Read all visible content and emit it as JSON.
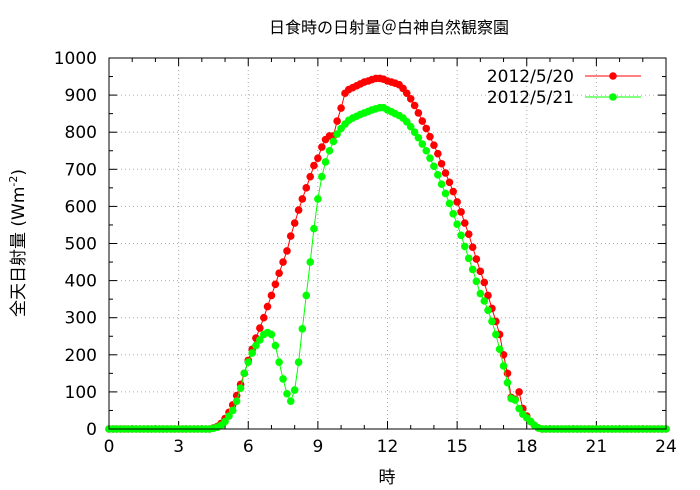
{
  "chart_data": {
    "type": "line",
    "title": "日食時の日射量＠白神自然観察園",
    "xlabel": "時",
    "ylabel_main": "全天日射量 (Wm",
    "ylabel_sup": "-2",
    "ylabel_close": ")",
    "xlim": [
      0,
      24
    ],
    "ylim": [
      0,
      1000
    ],
    "xticks": [
      0,
      3,
      6,
      9,
      12,
      15,
      18,
      21,
      24
    ],
    "yticks": [
      0,
      100,
      200,
      300,
      400,
      500,
      600,
      700,
      800,
      900,
      1000
    ],
    "grid": true,
    "legend_position": "top-right",
    "series": [
      {
        "name": "2012/5/20",
        "color": "#ff0000",
        "points": [
          [
            0,
            0
          ],
          [
            0.17,
            0
          ],
          [
            0.33,
            0
          ],
          [
            0.5,
            0
          ],
          [
            0.67,
            0
          ],
          [
            0.83,
            0
          ],
          [
            1,
            0
          ],
          [
            1.17,
            0
          ],
          [
            1.33,
            0
          ],
          [
            1.5,
            0
          ],
          [
            1.67,
            0
          ],
          [
            1.83,
            0
          ],
          [
            2,
            0
          ],
          [
            2.17,
            0
          ],
          [
            2.33,
            0
          ],
          [
            2.5,
            0
          ],
          [
            2.67,
            0
          ],
          [
            2.83,
            0
          ],
          [
            3,
            0
          ],
          [
            3.17,
            0
          ],
          [
            3.33,
            0
          ],
          [
            3.5,
            0
          ],
          [
            3.67,
            0
          ],
          [
            3.83,
            0
          ],
          [
            4,
            0
          ],
          [
            4.17,
            0
          ],
          [
            4.33,
            0
          ],
          [
            4.5,
            3
          ],
          [
            4.67,
            7
          ],
          [
            4.83,
            15
          ],
          [
            5,
            28
          ],
          [
            5.17,
            45
          ],
          [
            5.33,
            65
          ],
          [
            5.5,
            90
          ],
          [
            5.67,
            120
          ],
          [
            5.83,
            150
          ],
          [
            6,
            185
          ],
          [
            6.17,
            215
          ],
          [
            6.33,
            245
          ],
          [
            6.5,
            272
          ],
          [
            6.67,
            300
          ],
          [
            6.83,
            330
          ],
          [
            7,
            360
          ],
          [
            7.17,
            390
          ],
          [
            7.33,
            420
          ],
          [
            7.5,
            450
          ],
          [
            7.67,
            480
          ],
          [
            7.83,
            520
          ],
          [
            8,
            555
          ],
          [
            8.17,
            590
          ],
          [
            8.33,
            620
          ],
          [
            8.5,
            650
          ],
          [
            8.67,
            680
          ],
          [
            8.83,
            710
          ],
          [
            9,
            730
          ],
          [
            9.17,
            760
          ],
          [
            9.33,
            780
          ],
          [
            9.5,
            790
          ],
          [
            9.67,
            790
          ],
          [
            9.83,
            830
          ],
          [
            10,
            865
          ],
          [
            10.17,
            905
          ],
          [
            10.33,
            915
          ],
          [
            10.5,
            920
          ],
          [
            10.67,
            925
          ],
          [
            10.83,
            930
          ],
          [
            11,
            935
          ],
          [
            11.17,
            938
          ],
          [
            11.33,
            942
          ],
          [
            11.5,
            945
          ],
          [
            11.67,
            945
          ],
          [
            11.83,
            943
          ],
          [
            12,
            938
          ],
          [
            12.17,
            935
          ],
          [
            12.33,
            932
          ],
          [
            12.5,
            928
          ],
          [
            12.67,
            918
          ],
          [
            12.83,
            905
          ],
          [
            13,
            890
          ],
          [
            13.17,
            872
          ],
          [
            13.33,
            852
          ],
          [
            13.5,
            830
          ],
          [
            13.67,
            810
          ],
          [
            13.83,
            788
          ],
          [
            14,
            765
          ],
          [
            14.17,
            742
          ],
          [
            14.33,
            715
          ],
          [
            14.5,
            690
          ],
          [
            14.67,
            665
          ],
          [
            14.83,
            640
          ],
          [
            15,
            612
          ],
          [
            15.17,
            585
          ],
          [
            15.33,
            555
          ],
          [
            15.5,
            525
          ],
          [
            15.67,
            490
          ],
          [
            15.83,
            458
          ],
          [
            16,
            425
          ],
          [
            16.17,
            395
          ],
          [
            16.33,
            360
          ],
          [
            16.5,
            325
          ],
          [
            16.67,
            290
          ],
          [
            16.83,
            255
          ],
          [
            17,
            200
          ],
          [
            17.17,
            150
          ],
          [
            17.33,
            85
          ],
          [
            17.5,
            80
          ],
          [
            17.67,
            100
          ],
          [
            17.83,
            55
          ],
          [
            18,
            35
          ],
          [
            18.17,
            20
          ],
          [
            18.33,
            10
          ],
          [
            18.5,
            3
          ],
          [
            18.67,
            0
          ],
          [
            18.83,
            0
          ],
          [
            19,
            0
          ],
          [
            19.17,
            0
          ],
          [
            19.33,
            0
          ],
          [
            19.5,
            0
          ],
          [
            19.67,
            0
          ],
          [
            19.83,
            0
          ],
          [
            20,
            0
          ],
          [
            20.17,
            0
          ],
          [
            20.33,
            0
          ],
          [
            20.5,
            0
          ],
          [
            20.67,
            0
          ],
          [
            20.83,
            0
          ],
          [
            21,
            0
          ],
          [
            21.17,
            0
          ],
          [
            21.33,
            0
          ],
          [
            21.5,
            0
          ],
          [
            21.67,
            0
          ],
          [
            21.83,
            0
          ],
          [
            22,
            0
          ],
          [
            22.17,
            0
          ],
          [
            22.33,
            0
          ],
          [
            22.5,
            0
          ],
          [
            22.67,
            0
          ],
          [
            22.83,
            0
          ],
          [
            23,
            0
          ],
          [
            23.17,
            0
          ],
          [
            23.33,
            0
          ],
          [
            23.5,
            0
          ],
          [
            23.67,
            0
          ],
          [
            23.83,
            0
          ],
          [
            24,
            0
          ]
        ]
      },
      {
        "name": "2012/5/21",
        "color": "#00ff00",
        "points": [
          [
            0,
            0
          ],
          [
            0.17,
            0
          ],
          [
            0.33,
            0
          ],
          [
            0.5,
            0
          ],
          [
            0.67,
            0
          ],
          [
            0.83,
            0
          ],
          [
            1,
            0
          ],
          [
            1.17,
            0
          ],
          [
            1.33,
            0
          ],
          [
            1.5,
            0
          ],
          [
            1.67,
            0
          ],
          [
            1.83,
            0
          ],
          [
            2,
            0
          ],
          [
            2.17,
            0
          ],
          [
            2.33,
            0
          ],
          [
            2.5,
            0
          ],
          [
            2.67,
            0
          ],
          [
            2.83,
            0
          ],
          [
            3,
            0
          ],
          [
            3.17,
            0
          ],
          [
            3.33,
            0
          ],
          [
            3.5,
            0
          ],
          [
            3.67,
            0
          ],
          [
            3.83,
            0
          ],
          [
            4,
            0
          ],
          [
            4.17,
            0
          ],
          [
            4.33,
            0
          ],
          [
            4.5,
            2
          ],
          [
            4.67,
            5
          ],
          [
            4.83,
            10
          ],
          [
            5,
            20
          ],
          [
            5.17,
            35
          ],
          [
            5.33,
            50
          ],
          [
            5.5,
            75
          ],
          [
            5.67,
            110
          ],
          [
            5.83,
            150
          ],
          [
            6,
            180
          ],
          [
            6.17,
            205
          ],
          [
            6.33,
            225
          ],
          [
            6.5,
            240
          ],
          [
            6.67,
            255
          ],
          [
            6.83,
            260
          ],
          [
            7,
            255
          ],
          [
            7.17,
            225
          ],
          [
            7.33,
            180
          ],
          [
            7.5,
            135
          ],
          [
            7.67,
            95
          ],
          [
            7.83,
            75
          ],
          [
            8,
            105
          ],
          [
            8.17,
            180
          ],
          [
            8.33,
            270
          ],
          [
            8.5,
            360
          ],
          [
            8.67,
            450
          ],
          [
            8.83,
            540
          ],
          [
            9,
            620
          ],
          [
            9.17,
            680
          ],
          [
            9.33,
            720
          ],
          [
            9.5,
            750
          ],
          [
            9.67,
            775
          ],
          [
            9.83,
            795
          ],
          [
            10,
            810
          ],
          [
            10.17,
            822
          ],
          [
            10.33,
            832
          ],
          [
            10.5,
            838
          ],
          [
            10.67,
            843
          ],
          [
            10.83,
            848
          ],
          [
            11,
            852
          ],
          [
            11.17,
            856
          ],
          [
            11.33,
            860
          ],
          [
            11.5,
            863
          ],
          [
            11.67,
            866
          ],
          [
            11.83,
            866
          ],
          [
            12,
            860
          ],
          [
            12.17,
            855
          ],
          [
            12.33,
            850
          ],
          [
            12.5,
            845
          ],
          [
            12.67,
            838
          ],
          [
            12.83,
            828
          ],
          [
            13,
            815
          ],
          [
            13.17,
            800
          ],
          [
            13.33,
            785
          ],
          [
            13.5,
            768
          ],
          [
            13.67,
            750
          ],
          [
            13.83,
            730
          ],
          [
            14,
            708
          ],
          [
            14.17,
            685
          ],
          [
            14.33,
            660
          ],
          [
            14.5,
            635
          ],
          [
            14.67,
            608
          ],
          [
            14.83,
            580
          ],
          [
            15,
            552
          ],
          [
            15.17,
            522
          ],
          [
            15.33,
            492
          ],
          [
            15.5,
            460
          ],
          [
            15.67,
            430
          ],
          [
            15.83,
            398
          ],
          [
            16,
            365
          ],
          [
            16.17,
            345
          ],
          [
            16.33,
            320
          ],
          [
            16.5,
            290
          ],
          [
            16.67,
            255
          ],
          [
            16.83,
            215
          ],
          [
            17,
            170
          ],
          [
            17.17,
            125
          ],
          [
            17.33,
            82
          ],
          [
            17.5,
            78
          ],
          [
            17.67,
            55
          ],
          [
            17.83,
            40
          ],
          [
            18,
            30
          ],
          [
            18.17,
            20
          ],
          [
            18.33,
            10
          ],
          [
            18.5,
            3
          ],
          [
            18.67,
            0
          ],
          [
            18.83,
            0
          ],
          [
            19,
            0
          ],
          [
            19.17,
            0
          ],
          [
            19.33,
            0
          ],
          [
            19.5,
            0
          ],
          [
            19.67,
            0
          ],
          [
            19.83,
            0
          ],
          [
            20,
            0
          ],
          [
            20.17,
            0
          ],
          [
            20.33,
            0
          ],
          [
            20.5,
            0
          ],
          [
            20.67,
            0
          ],
          [
            20.83,
            0
          ],
          [
            21,
            0
          ],
          [
            21.17,
            0
          ],
          [
            21.33,
            0
          ],
          [
            21.5,
            0
          ],
          [
            21.67,
            0
          ],
          [
            21.83,
            0
          ],
          [
            22,
            0
          ],
          [
            22.17,
            0
          ],
          [
            22.33,
            0
          ],
          [
            22.5,
            0
          ],
          [
            22.67,
            0
          ],
          [
            22.83,
            0
          ],
          [
            23,
            0
          ],
          [
            23.17,
            0
          ],
          [
            23.33,
            0
          ],
          [
            23.5,
            0
          ],
          [
            23.67,
            0
          ],
          [
            23.83,
            0
          ],
          [
            24,
            0
          ]
        ]
      }
    ]
  }
}
